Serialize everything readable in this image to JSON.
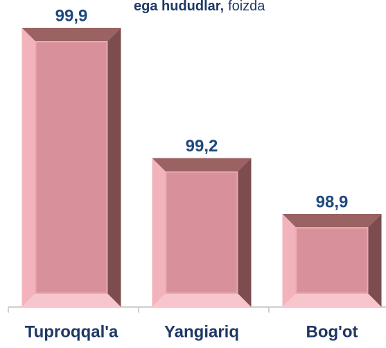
{
  "chart_data": {
    "type": "bar",
    "title_parts": [
      "ega hududlar,",
      "foizda"
    ],
    "categories": [
      "Tuproqqal'a",
      "Yangiariq",
      "Bog'ot"
    ],
    "values": [
      99.9,
      99.2,
      98.9
    ],
    "value_labels": [
      "99,9",
      "99,2",
      "98,9"
    ],
    "color": "#d8919a",
    "ylim": [
      98.4,
      99.9
    ]
  }
}
